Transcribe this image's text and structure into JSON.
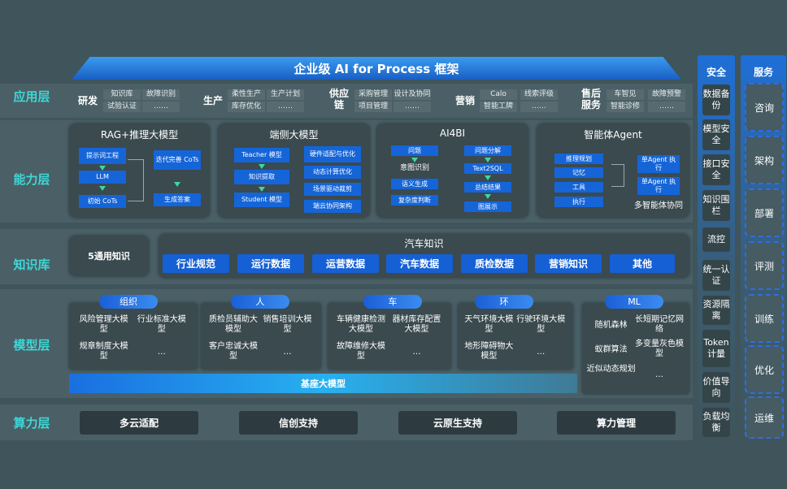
{
  "title": "企业级 AI for Process 框架",
  "layers": {
    "app": "应用层",
    "capability": "能力层",
    "knowledge": "知识库",
    "model": "模型层",
    "compute": "算力层"
  },
  "app_groups": [
    {
      "name": "研发",
      "items": [
        "知识库",
        "故障识别",
        "试验认证",
        "……"
      ]
    },
    {
      "name": "生产",
      "items": [
        "柔性生产",
        "生产计划",
        "库存优化",
        "……"
      ]
    },
    {
      "name": "供应链",
      "items": [
        "采购管理",
        "设计及协同",
        "项目管理",
        "……"
      ]
    },
    {
      "name": "营销",
      "items": [
        "Calo",
        "线索评级",
        "智能工牌",
        "……"
      ]
    },
    {
      "name": "售后服务",
      "items": [
        "车智见",
        "故障预警",
        "智能诊修",
        "……"
      ]
    }
  ],
  "capability": {
    "rag": {
      "title": "RAG+推理大模型",
      "items": [
        "提示词工程",
        "LLM",
        "初始 CoTs",
        "迭代完善 CoTs",
        "生成答案"
      ]
    },
    "edge": {
      "title": "端侧大模型",
      "items": [
        "Teacher 模型",
        "知识提取",
        "Student 模型",
        "硬件适配与优化",
        "动态计算优化",
        "场景驱动裁剪",
        "端云协同架构"
      ]
    },
    "ai4bi": {
      "title": "AI4BI",
      "items": [
        "问题",
        "意图识别",
        "语义生成",
        "复杂度判断",
        "问题分解",
        "Text2SQL",
        "总结结果",
        "图展示"
      ]
    },
    "agent": {
      "title": "智能体Agent",
      "items": [
        "推理规划",
        "记忆",
        "工具",
        "执行",
        "单Agent 执行",
        "单Agent 执行"
      ],
      "caption": "多智能体协同"
    }
  },
  "knowledge": {
    "general": "5通用知识",
    "auto_title": "汽车知识",
    "auto_items": [
      "行业规范",
      "运行数据",
      "运营数据",
      "汽车数据",
      "质检数据",
      "营销知识",
      "其他"
    ]
  },
  "model": {
    "groups": [
      {
        "name": "组织",
        "items": [
          "风险管理大模型",
          "行业标准大模型",
          "规章制度大模型",
          "…"
        ]
      },
      {
        "name": "人",
        "items": [
          "质检员辅助大模型",
          "销售培训大模型",
          "客户忠诚大模型",
          "…"
        ]
      },
      {
        "name": "车",
        "items": [
          "车辆健康检测大模型",
          "器材库存配置大模型",
          "故障维修大模型",
          "…"
        ]
      },
      {
        "name": "环",
        "items": [
          "天气环境大模型",
          "行驶环境大模型",
          "地形障碍物大模型",
          "…"
        ]
      },
      {
        "name": "ML",
        "items": [
          "随机森林",
          "长短期记忆网络",
          "蚁群算法",
          "多变量灰色模型",
          "近似动态规划",
          "…"
        ]
      }
    ],
    "base": "基座大模型"
  },
  "compute": [
    "多云适配",
    "信创支持",
    "云原生支持",
    "算力管理"
  ],
  "security": {
    "title": "安全",
    "items": [
      "数据备份",
      "模型安全",
      "接口安全",
      "知识围栏",
      "流控",
      "统一认证",
      "资源隔离",
      "Token计量",
      "价值导向",
      "负载均衡"
    ]
  },
  "services": {
    "title": "服务",
    "items": [
      "咨询",
      "架构",
      "部署",
      "评测",
      "训练",
      "优化",
      "运维"
    ]
  },
  "colors": {
    "accent": "#1565d8",
    "layer_label": "#3fd6d6",
    "background": "#3f555b"
  }
}
